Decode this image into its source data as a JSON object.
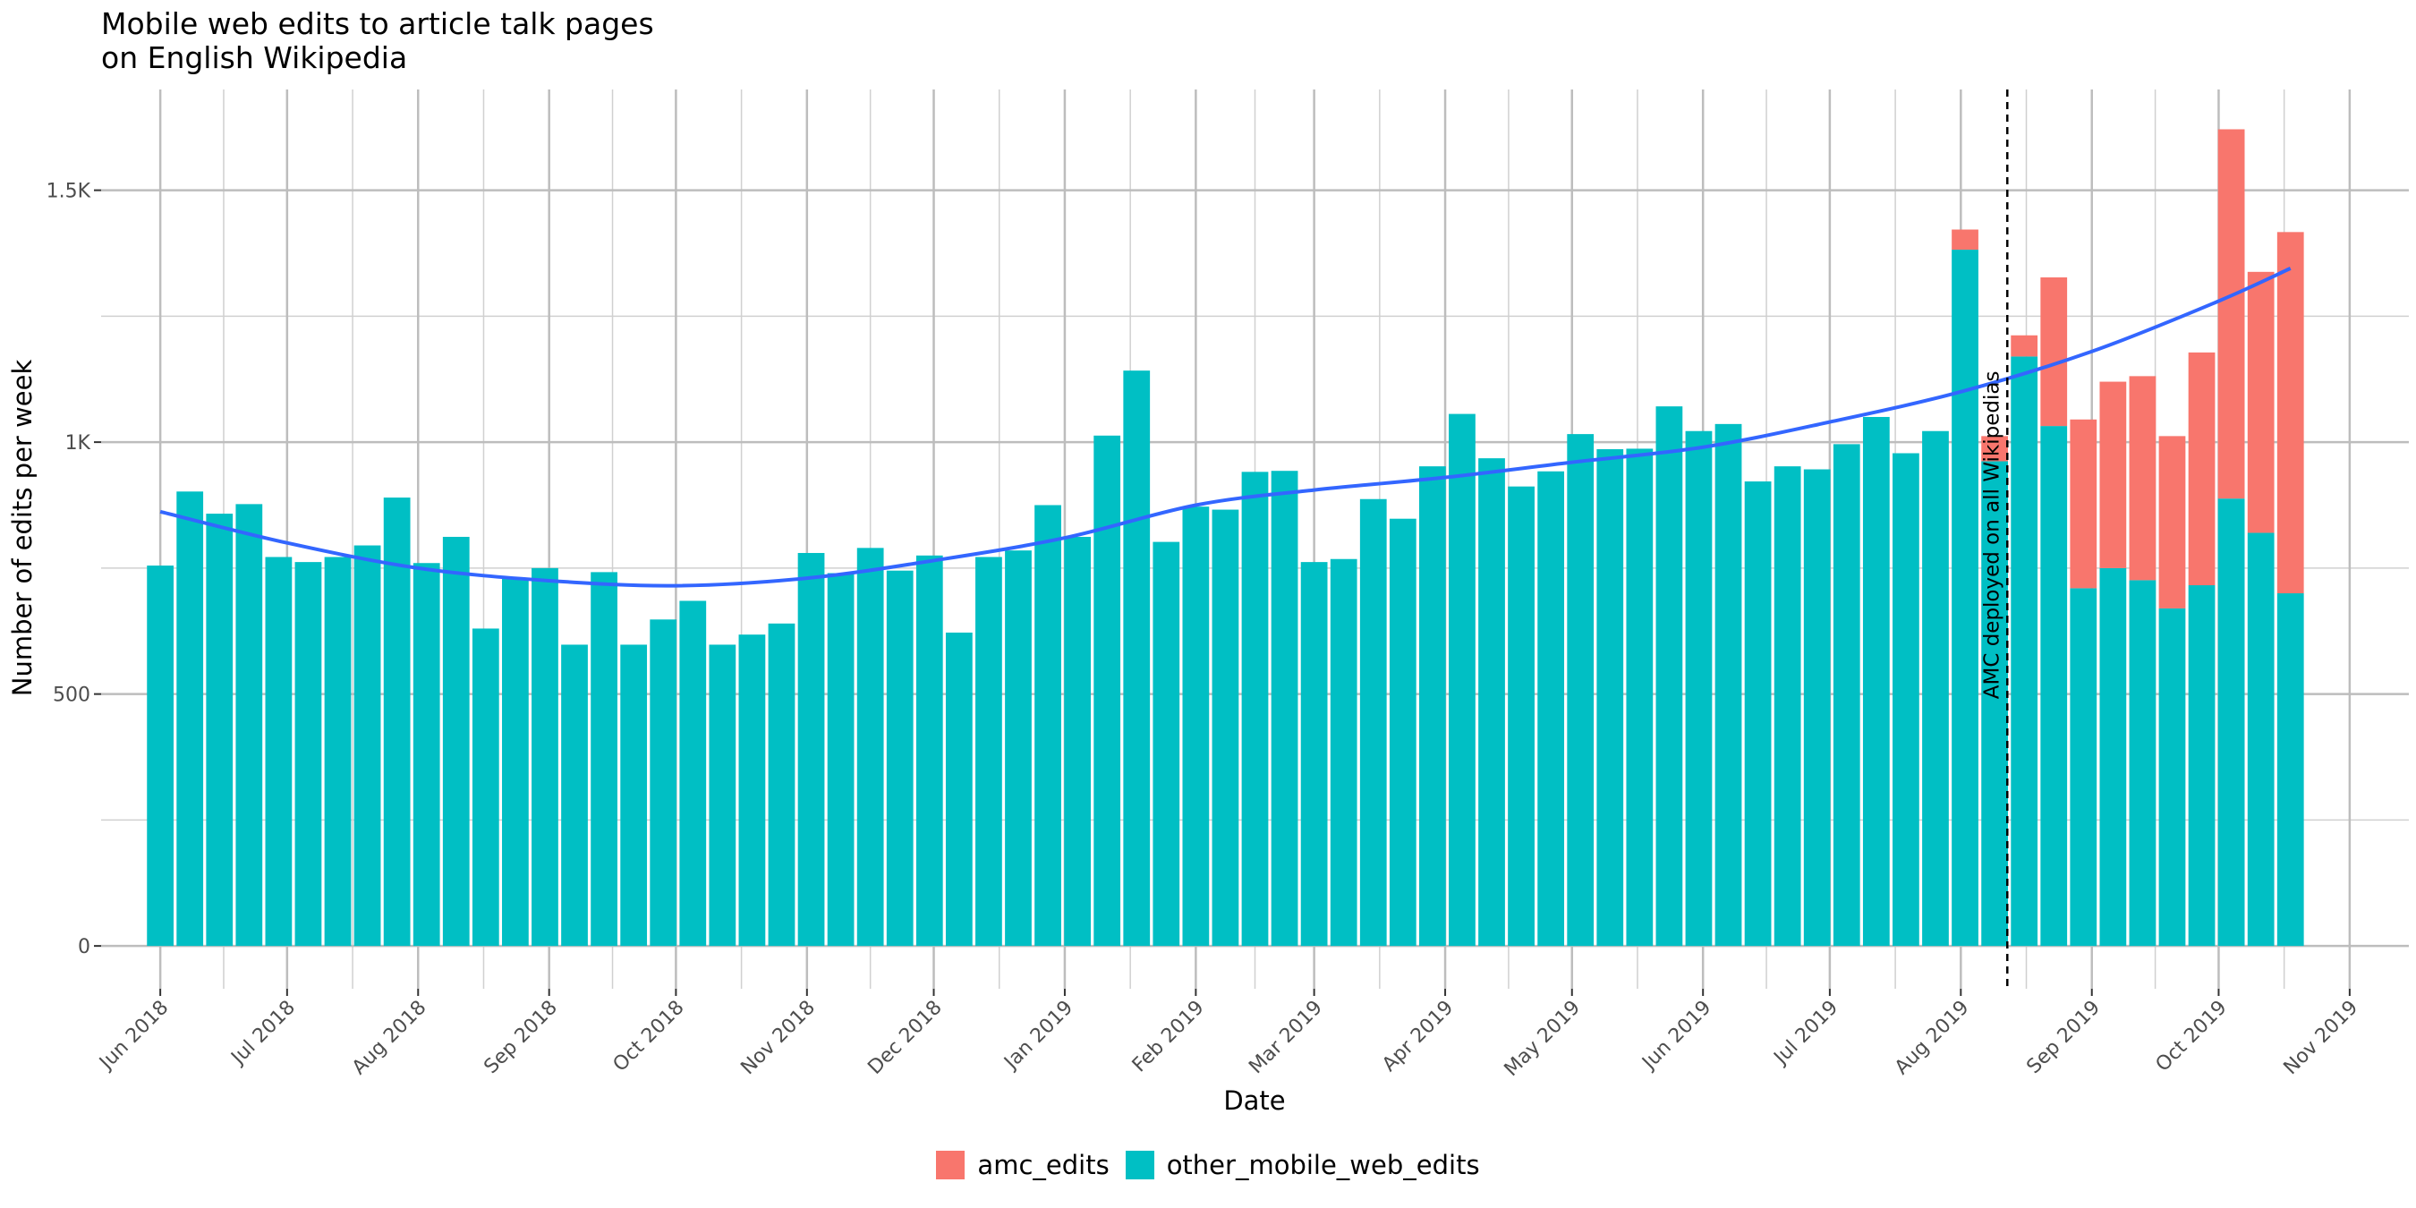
{
  "title": "Mobile web edits to article talk pages\n on English Wikipedia",
  "chart_data": {
    "type": "bar",
    "stacked": true,
    "title": "Mobile web edits to article talk pages\n on English Wikipedia",
    "xlabel": "Date",
    "ylabel": "Number of edits per week",
    "x_range": [
      "2018-05-18",
      "2019-11-15"
    ],
    "ylim": [
      -85,
      1700
    ],
    "y_ticks": [
      0,
      500,
      1000,
      1500
    ],
    "y_tick_labels": [
      "0",
      "500",
      "1K",
      "1.5K"
    ],
    "x_ticks": [
      "2018-06-01",
      "2018-07-01",
      "2018-08-01",
      "2018-09-01",
      "2018-10-01",
      "2018-11-01",
      "2018-12-01",
      "2019-01-01",
      "2019-02-01",
      "2019-03-01",
      "2019-04-01",
      "2019-05-01",
      "2019-06-01",
      "2019-07-01",
      "2019-08-01",
      "2019-09-01",
      "2019-10-01",
      "2019-11-01"
    ],
    "x_tick_labels": [
      "Jun 2018",
      "Jul 2018",
      "Aug 2018",
      "Sep 2018",
      "Oct 2018",
      "Nov 2018",
      "Dec 2018",
      "Jan 2019",
      "Feb 2019",
      "Mar 2019",
      "Apr 2019",
      "May 2019",
      "Jun 2019",
      "Jul 2019",
      "Aug 2019",
      "Sep 2019",
      "Oct 2019",
      "Nov 2019"
    ],
    "grid": true,
    "legend_position": "bottom",
    "categories": [
      "2018-06-01",
      "2018-06-08",
      "2018-06-15",
      "2018-06-22",
      "2018-06-29",
      "2018-07-06",
      "2018-07-13",
      "2018-07-20",
      "2018-07-27",
      "2018-08-03",
      "2018-08-10",
      "2018-08-17",
      "2018-08-24",
      "2018-08-31",
      "2018-09-07",
      "2018-09-14",
      "2018-09-21",
      "2018-09-28",
      "2018-10-05",
      "2018-10-12",
      "2018-10-19",
      "2018-10-26",
      "2018-11-02",
      "2018-11-09",
      "2018-11-16",
      "2018-11-23",
      "2018-11-30",
      "2018-12-07",
      "2018-12-14",
      "2018-12-21",
      "2018-12-28",
      "2019-01-04",
      "2019-01-11",
      "2019-01-18",
      "2019-01-25",
      "2019-02-01",
      "2019-02-08",
      "2019-02-15",
      "2019-02-22",
      "2019-03-01",
      "2019-03-08",
      "2019-03-15",
      "2019-03-22",
      "2019-03-29",
      "2019-04-05",
      "2019-04-12",
      "2019-04-19",
      "2019-04-26",
      "2019-05-03",
      "2019-05-10",
      "2019-05-17",
      "2019-05-24",
      "2019-05-31",
      "2019-06-07",
      "2019-06-14",
      "2019-06-21",
      "2019-06-28",
      "2019-07-05",
      "2019-07-12",
      "2019-07-19",
      "2019-07-26",
      "2019-08-02",
      "2019-08-09",
      "2019-08-16",
      "2019-08-23",
      "2019-08-30",
      "2019-09-06",
      "2019-09-13",
      "2019-09-20",
      "2019-09-27",
      "2019-10-04",
      "2019-10-11",
      "2019-10-18"
    ],
    "series": [
      {
        "name": "amc_edits",
        "color": "#F8766D",
        "values": [
          0,
          0,
          0,
          0,
          0,
          0,
          0,
          0,
          0,
          0,
          0,
          0,
          0,
          0,
          0,
          0,
          0,
          0,
          0,
          0,
          0,
          0,
          0,
          0,
          0,
          0,
          0,
          0,
          0,
          0,
          0,
          0,
          0,
          0,
          0,
          0,
          0,
          0,
          0,
          0,
          0,
          0,
          0,
          0,
          0,
          0,
          0,
          0,
          0,
          0,
          0,
          0,
          0,
          0,
          0,
          0,
          0,
          0,
          0,
          0,
          0,
          40,
          50,
          42,
          295,
          335,
          370,
          405,
          342,
          462,
          733,
          518,
          717
        ]
      },
      {
        "name": "other_mobile_web_edits",
        "color": "#00BFC4",
        "values": [
          755,
          902,
          858,
          877,
          772,
          762,
          772,
          795,
          890,
          760,
          812,
          630,
          730,
          750,
          598,
          742,
          598,
          648,
          685,
          598,
          618,
          640,
          780,
          740,
          790,
          745,
          775,
          622,
          772,
          785,
          875,
          812,
          1013,
          1142,
          802,
          872,
          866,
          941,
          943,
          762,
          768,
          887,
          848,
          952,
          1056,
          968,
          912,
          942,
          1016,
          986,
          987,
          1071,
          1022,
          1036,
          922,
          952,
          946,
          996,
          1050,
          978,
          1022,
          1382,
          962,
          1170,
          1032,
          710,
          750,
          726,
          670,
          716,
          888,
          820,
          700
        ]
      }
    ],
    "trend_line": {
      "color": "#3366FF",
      "x": [
        "2018-06-01",
        "2018-07-01",
        "2018-08-01",
        "2018-09-01",
        "2018-10-01",
        "2018-11-01",
        "2018-12-01",
        "2019-01-01",
        "2019-02-01",
        "2019-03-01",
        "2019-04-01",
        "2019-05-01",
        "2019-06-01",
        "2019-07-01",
        "2019-08-01",
        "2019-09-01",
        "2019-10-01",
        "2019-10-18"
      ],
      "y": [
        862,
        800,
        750,
        725,
        715,
        730,
        765,
        810,
        875,
        905,
        930,
        960,
        990,
        1040,
        1100,
        1180,
        1280,
        1345
      ]
    },
    "annotation": {
      "x": "2019-08-12",
      "text": "AMC deployed on all Wikipedias",
      "line_style": "dashed"
    }
  }
}
